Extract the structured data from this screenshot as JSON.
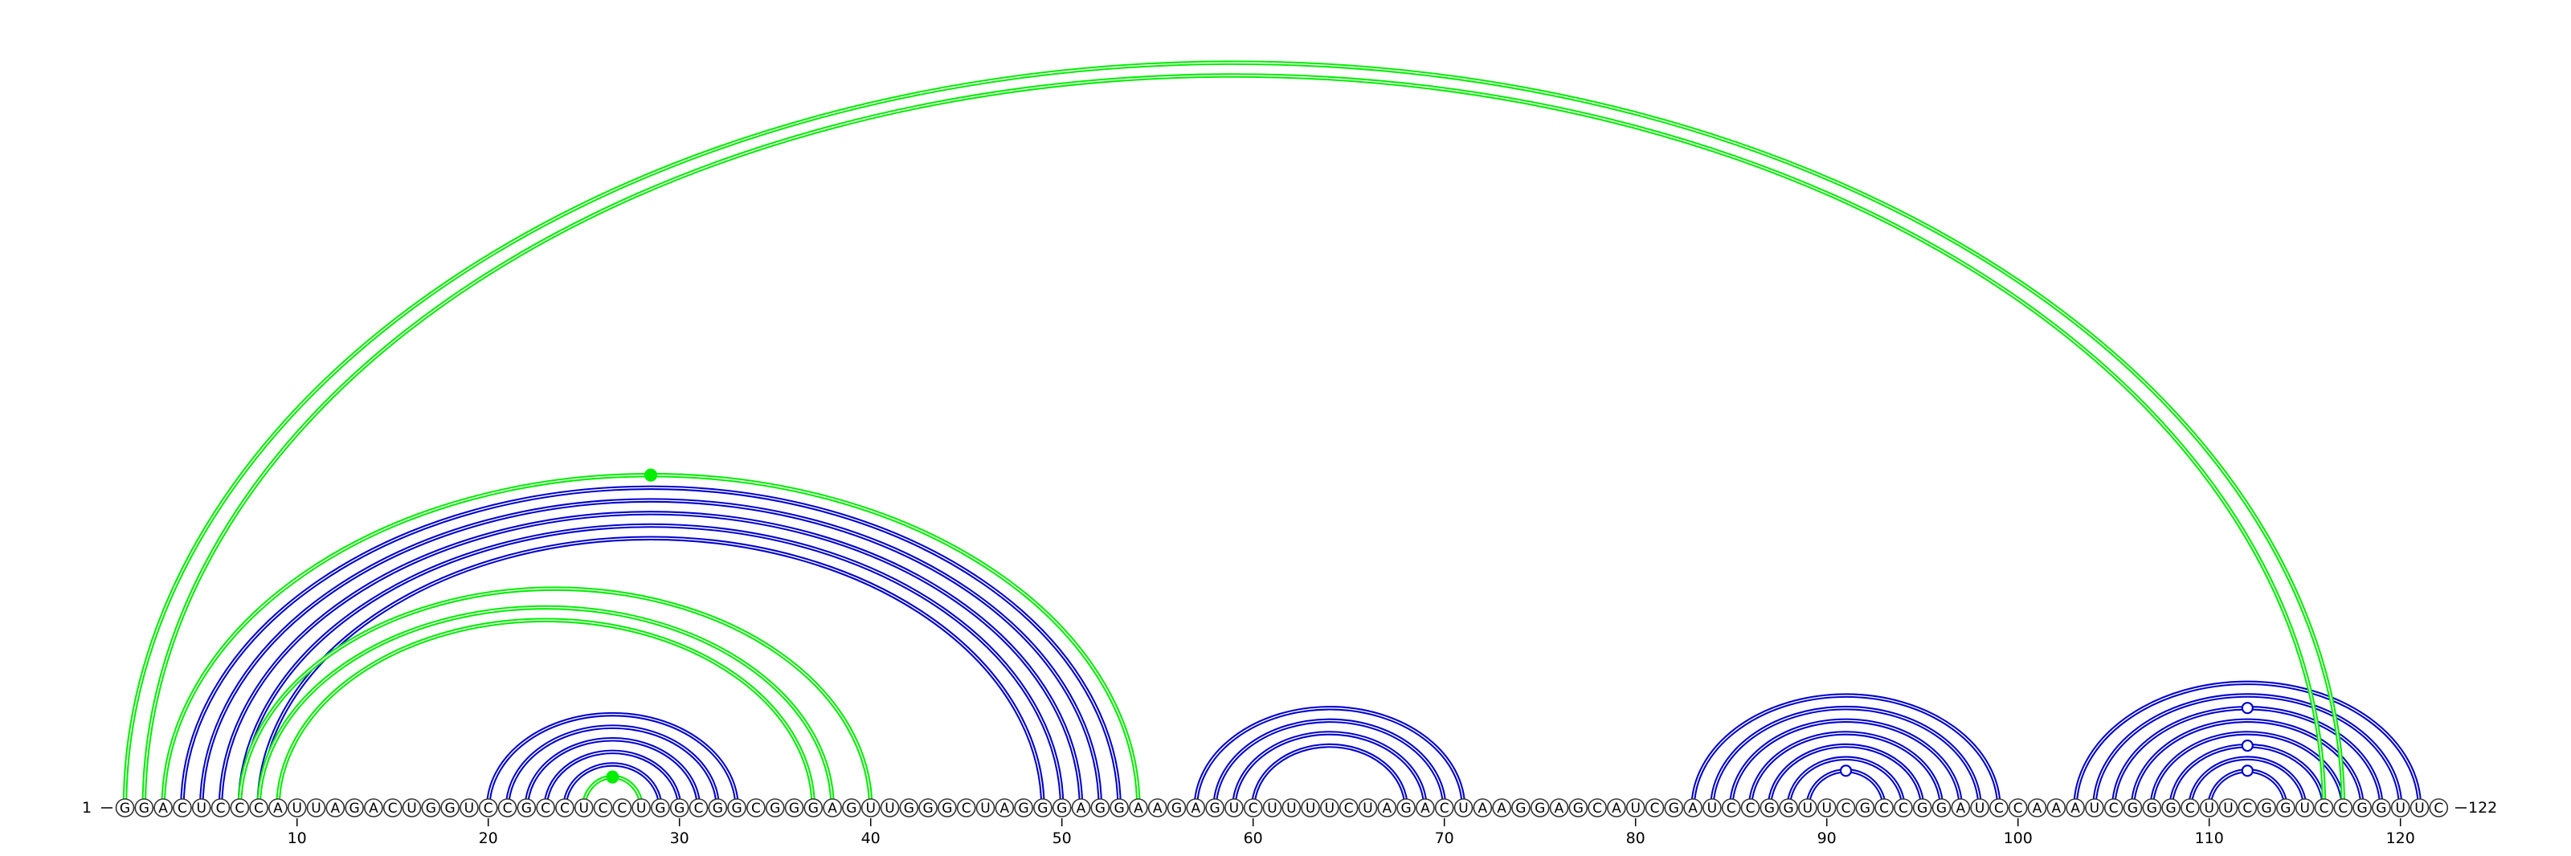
{
  "sequence": "GGACUCCCAUUAGACUGGUCCGCCUCCUGGCGGCGGGAGUUGGGCUAGGGAGGAAGAGUCUUUUCUAGACUAAGGAGCAUCGAUCCGGUUCGCCGGAUCCAAAUCGGGCUUCGGUCCGGUUC",
  "start_label": "1",
  "end_label": "122",
  "colors": {
    "canonical": "#0000cc",
    "alternate": "#00ee00",
    "node_fill": "#ffffff",
    "node_stroke": "#333333"
  },
  "tick_labels": [
    "10",
    "20",
    "30",
    "40",
    "50",
    "60",
    "70",
    "80",
    "90",
    "100",
    "110",
    "120"
  ],
  "helices": [
    {
      "color": "blue",
      "pairs": [
        [
          4,
          53
        ],
        [
          5,
          52
        ],
        [
          6,
          51
        ],
        [
          7,
          50
        ],
        [
          8,
          49
        ]
      ]
    },
    {
      "color": "blue",
      "pairs": [
        [
          20,
          33
        ],
        [
          21,
          32
        ],
        [
          22,
          31
        ],
        [
          23,
          30
        ],
        [
          24,
          29
        ]
      ]
    },
    {
      "color": "blue",
      "pairs": [
        [
          57,
          71
        ],
        [
          58,
          70
        ],
        [
          59,
          69
        ],
        [
          60,
          68
        ]
      ]
    },
    {
      "color": "blue",
      "pairs": [
        [
          83,
          99
        ],
        [
          84,
          98
        ],
        [
          85,
          97
        ],
        [
          86,
          96
        ],
        [
          87,
          95
        ],
        [
          88,
          94
        ],
        [
          89,
          93
        ]
      ]
    },
    {
      "color": "blue",
      "pairs": [
        [
          103,
          121
        ],
        [
          104,
          120
        ],
        [
          105,
          119
        ],
        [
          106,
          118
        ],
        [
          107,
          117
        ],
        [
          108,
          116
        ],
        [
          109,
          115
        ],
        [
          110,
          114
        ]
      ]
    },
    {
      "color": "green",
      "pairs": [
        [
          1,
          117
        ],
        [
          2,
          116
        ]
      ]
    },
    {
      "color": "green",
      "pairs": [
        [
          3,
          54
        ]
      ]
    },
    {
      "color": "green",
      "pairs": [
        [
          7,
          40
        ],
        [
          8,
          38
        ],
        [
          9,
          37
        ]
      ]
    },
    {
      "color": "green",
      "pairs": [
        [
          25,
          28
        ]
      ]
    }
  ],
  "arc_markers": [
    {
      "pair": [
        3,
        54
      ],
      "style": "dot"
    },
    {
      "pair": [
        25,
        28
      ],
      "style": "dot"
    },
    {
      "pair": [
        110,
        114
      ],
      "style": "ring"
    },
    {
      "pair": [
        108,
        116
      ],
      "style": "ring"
    },
    {
      "pair": [
        105,
        119
      ],
      "style": "ring"
    },
    {
      "pair": [
        89,
        93
      ],
      "style": "ring"
    }
  ]
}
